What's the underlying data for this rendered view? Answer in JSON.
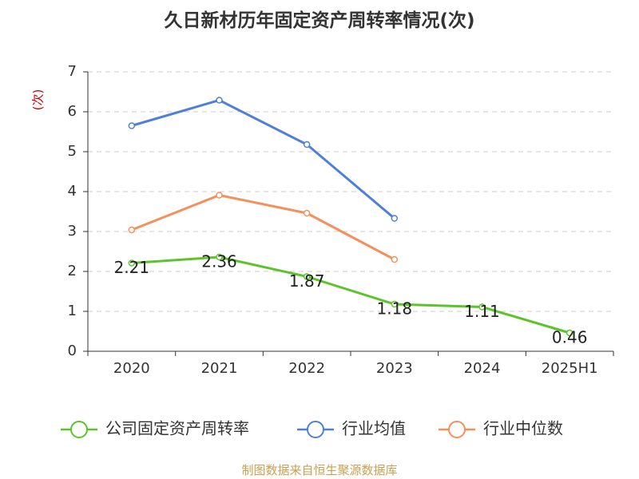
{
  "chart_data": {
    "type": "line",
    "title": "久日新材历年固定资产周转率情况(次)",
    "ylabel": "(次)",
    "xlabel": "",
    "categories": [
      "2020",
      "2021",
      "2022",
      "2023",
      "2024",
      "2025H1"
    ],
    "ylim": [
      0,
      7
    ],
    "yticks": [
      0,
      1,
      2,
      3,
      4,
      5,
      6,
      7
    ],
    "grid": true,
    "legend_position": "bottom",
    "series": [
      {
        "name": "公司固定资产周转率",
        "color": "#5cc42b",
        "values": [
          2.21,
          2.36,
          1.87,
          1.18,
          1.11,
          0.46
        ],
        "show_labels": true
      },
      {
        "name": "行业均值",
        "color": "#4f7fd9",
        "values": [
          5.65,
          6.29,
          5.18,
          3.33,
          null,
          null
        ],
        "show_labels": false
      },
      {
        "name": "行业中位数",
        "color": "#f5905c",
        "values": [
          3.04,
          3.91,
          3.46,
          2.3,
          null,
          null
        ],
        "show_labels": false
      }
    ],
    "data_labels": [
      "2.21",
      "2.36",
      "1.87",
      "1.18",
      "1.11",
      "0.46"
    ]
  },
  "footer": {
    "source": "制图数据来自恒生聚源数据库"
  }
}
